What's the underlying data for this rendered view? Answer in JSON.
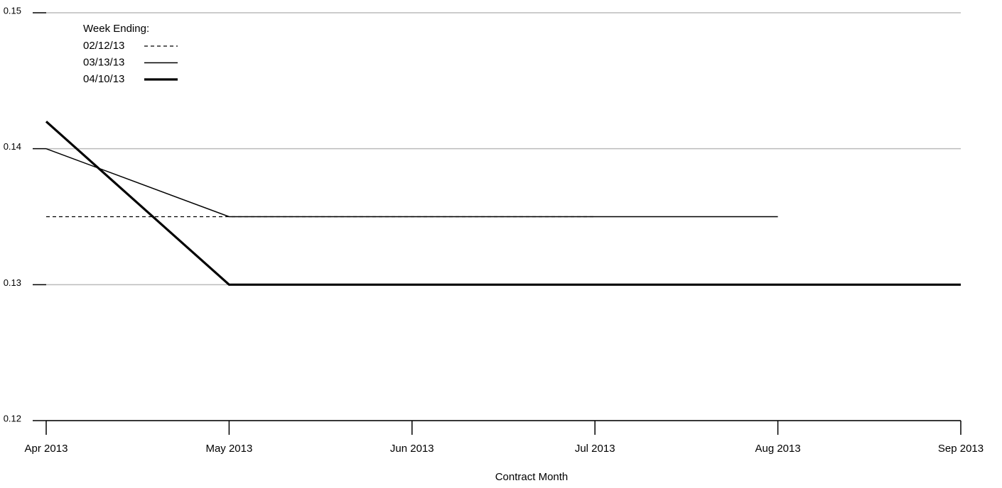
{
  "chart_data": {
    "type": "line",
    "x_label": "Contract Month",
    "legend_title": "Week Ending:",
    "categories": [
      "Apr 2013",
      "May 2013",
      "Jun 2013",
      "Jul 2013",
      "Aug 2013",
      "Sep 2013"
    ],
    "series": [
      {
        "name": "02/12/13",
        "color": "#000000",
        "style": "dashed",
        "values": [
          0.135,
          0.135,
          0.135,
          0.135,
          null,
          null
        ]
      },
      {
        "name": "03/13/13",
        "color": "#000000",
        "style": "solid",
        "values": [
          0.14,
          0.135,
          0.135,
          0.135,
          0.135,
          null
        ]
      },
      {
        "name": "04/10/13",
        "color": "#000000",
        "style": "bold",
        "values": [
          0.142,
          0.13,
          0.13,
          0.13,
          0.13,
          0.13
        ]
      }
    ],
    "ylim": [
      0.12,
      0.15
    ],
    "yticks": [
      0.12,
      0.13,
      0.14,
      0.15
    ],
    "grid": true,
    "legend": "upper left"
  }
}
